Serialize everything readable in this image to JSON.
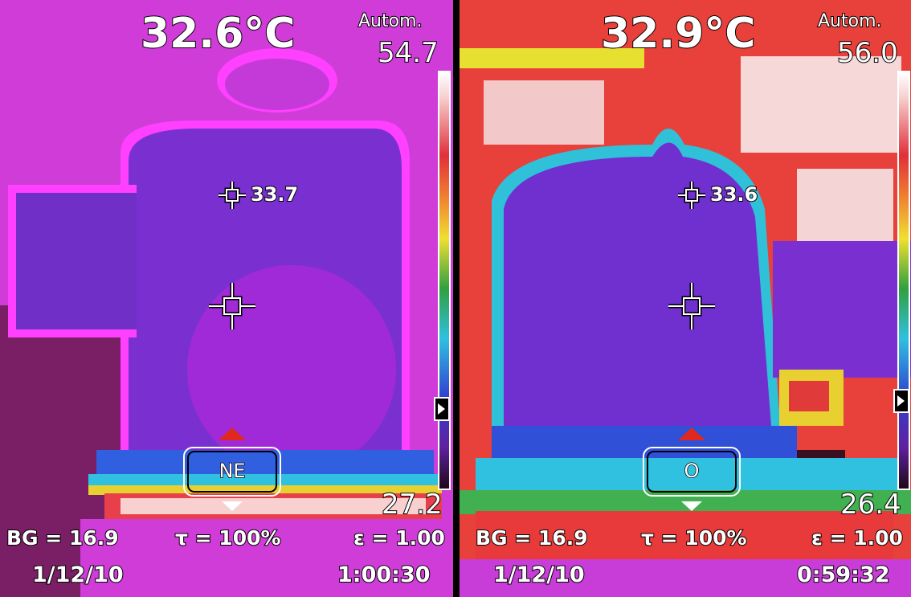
{
  "left": {
    "center_temp": "32.6°C",
    "mode": "Autom.",
    "range_max": "54.7",
    "range_min": "27.2",
    "spot_value": "33.7",
    "direction": "NE",
    "bg": "BG = 16.9",
    "tau": "τ = 100%",
    "epsilon": "ε = 1.00",
    "date": "1/12/10",
    "time": "1:00:30"
  },
  "right": {
    "center_temp": "32.9°C",
    "mode": "Autom.",
    "range_max": "56.0",
    "range_min": "26.4",
    "spot_value": "33.6",
    "direction": "O",
    "bg": "BG = 16.9",
    "tau": "τ = 100%",
    "epsilon": "ε = 1.00",
    "date": "1/12/10",
    "time": "0:59:32"
  },
  "icons": {
    "spot_marker": "crosshair-icon",
    "center_marker": "crosshair-icon",
    "nav_up": "arrow-up-icon",
    "nav_down": "arrow-down-icon",
    "colorbar_level": "level-marker-icon"
  },
  "colors": {
    "osd_text": "#ffffff",
    "nav_up_arrow": "#e0281e"
  }
}
